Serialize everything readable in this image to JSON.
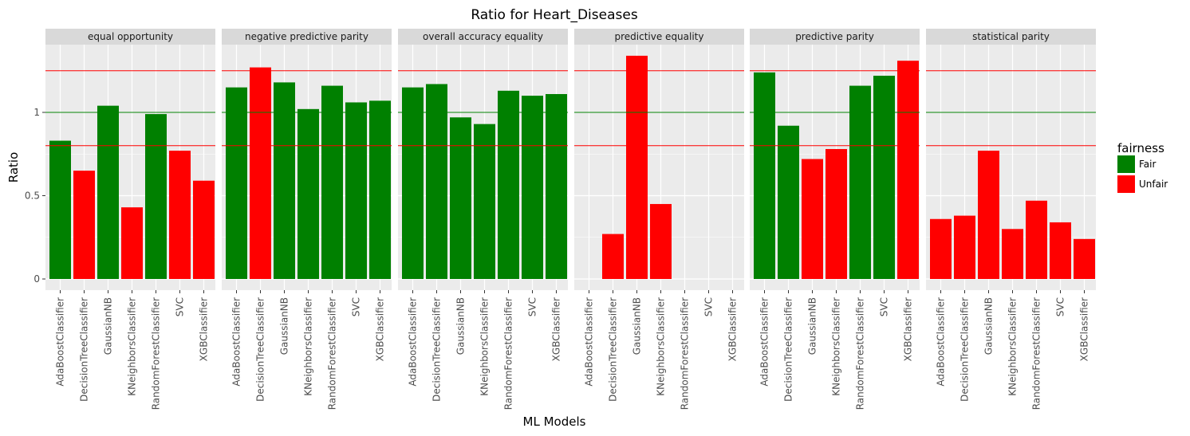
{
  "chart_data": {
    "type": "bar",
    "title": "Ratio for Heart_Diseases",
    "xlabel": "ML Models",
    "ylabel": "Ratio",
    "ylim": [
      -0.06,
      1.42
    ],
    "yticks": [
      0,
      0.5,
      1
    ],
    "ytick_labels": [
      "0",
      "0.5",
      "1"
    ],
    "reference_lines": [
      {
        "value": 1.25,
        "color": "#ff0000"
      },
      {
        "value": 1.0,
        "color": "#008000"
      },
      {
        "value": 0.8,
        "color": "#ff0000"
      }
    ],
    "categories": [
      "AdaBoostClassifier",
      "DecisionTreeClassifier",
      "GaussianNB",
      "KNeighborsClassifier",
      "RandomForestClassifier",
      "SVC",
      "XGBClassifier"
    ],
    "legend": {
      "title": "fairness",
      "position": "right",
      "entries": [
        {
          "label": "Fair",
          "color": "#008000"
        },
        {
          "label": "Unfair",
          "color": "#ff0000"
        }
      ]
    },
    "colors": {
      "Fair": "#008000",
      "Unfair": "#ff0000"
    },
    "panels": [
      {
        "name": "equal opportunity",
        "values": [
          0.83,
          0.65,
          1.04,
          0.43,
          0.99,
          0.77,
          0.59
        ],
        "fairness": [
          "Fair",
          "Unfair",
          "Fair",
          "Unfair",
          "Fair",
          "Unfair",
          "Unfair"
        ]
      },
      {
        "name": "negative predictive parity",
        "values": [
          1.15,
          1.27,
          1.18,
          1.02,
          1.16,
          1.06,
          1.07
        ],
        "fairness": [
          "Fair",
          "Unfair",
          "Fair",
          "Fair",
          "Fair",
          "Fair",
          "Fair"
        ]
      },
      {
        "name": "overall accuracy equality",
        "values": [
          1.15,
          1.17,
          0.97,
          0.93,
          1.13,
          1.1,
          1.11
        ],
        "fairness": [
          "Fair",
          "Fair",
          "Fair",
          "Fair",
          "Fair",
          "Fair",
          "Fair"
        ]
      },
      {
        "name": "predictive equality",
        "values": [
          0,
          0.27,
          1.34,
          0.45,
          0,
          0,
          0
        ],
        "fairness": [
          "Unfair",
          "Unfair",
          "Unfair",
          "Unfair",
          "Unfair",
          "Unfair",
          "Unfair"
        ]
      },
      {
        "name": "predictive parity",
        "values": [
          1.24,
          0.92,
          0.72,
          0.78,
          1.16,
          1.22,
          1.31
        ],
        "fairness": [
          "Fair",
          "Fair",
          "Unfair",
          "Unfair",
          "Fair",
          "Fair",
          "Unfair"
        ]
      },
      {
        "name": "statistical parity",
        "values": [
          0.36,
          0.38,
          0.77,
          0.3,
          0.47,
          0.34,
          0.24
        ],
        "fairness": [
          "Unfair",
          "Unfair",
          "Unfair",
          "Unfair",
          "Unfair",
          "Unfair",
          "Unfair"
        ]
      }
    ]
  }
}
